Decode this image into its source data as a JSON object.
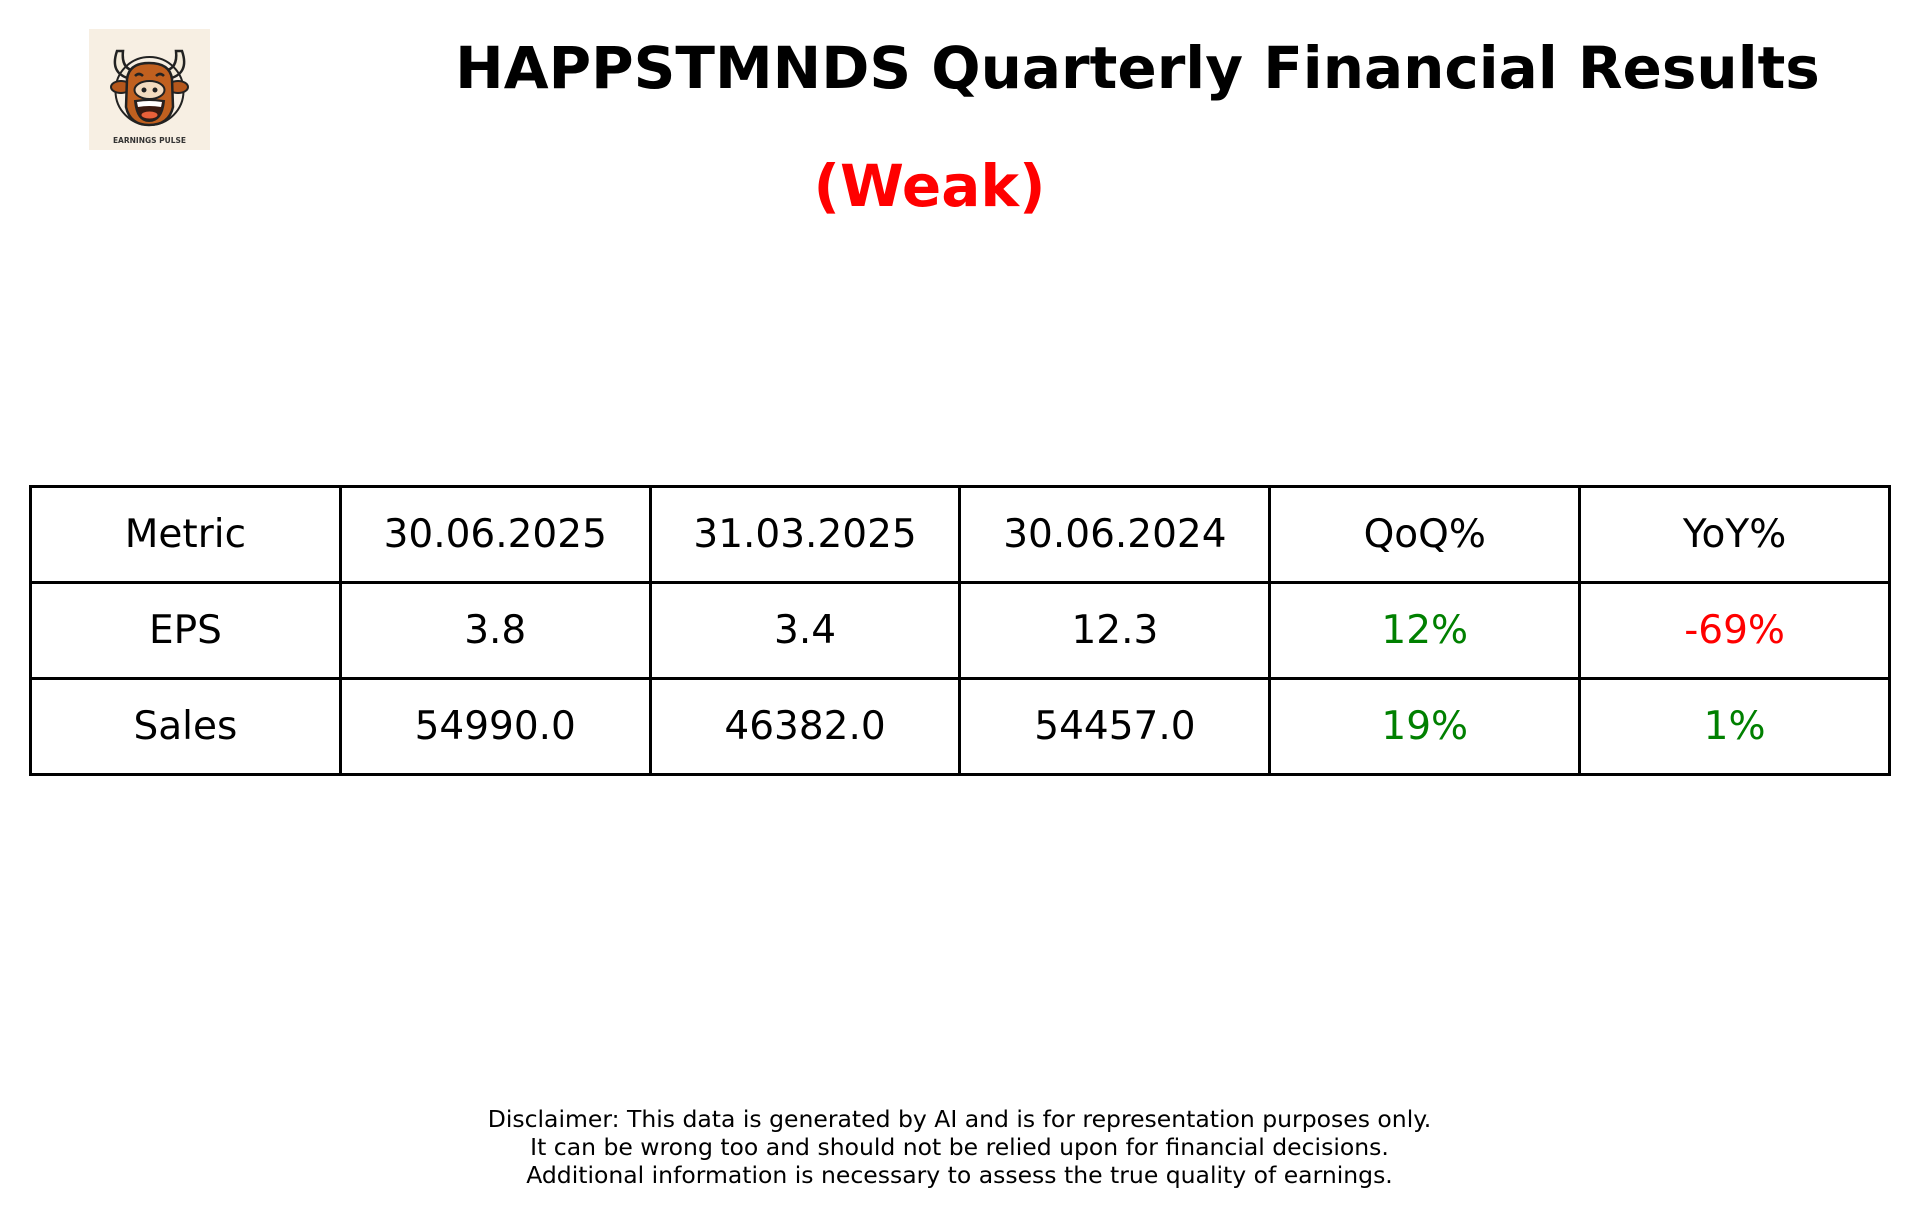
{
  "logo": {
    "text": "EARNINGS PULSE",
    "icon": "bull-face-icon"
  },
  "header": {
    "title": "HAPPSTMNDS Quarterly Financial Results",
    "verdict": "(Weak)",
    "verdict_color": "#ff0000"
  },
  "table": {
    "headers": [
      "Metric",
      "30.06.2025",
      "31.03.2025",
      "30.06.2024",
      "QoQ%",
      "YoY%"
    ],
    "rows": [
      {
        "metric": "EPS",
        "q1": "3.8",
        "q2": "3.4",
        "q3": "12.3",
        "qoq": "12%",
        "yoy": "-69%"
      },
      {
        "metric": "Sales",
        "q1": "54990.0",
        "q2": "46382.0",
        "q3": "54457.0",
        "qoq": "19%",
        "yoy": "1%"
      }
    ],
    "positive_color": "#008000",
    "negative_color": "#ff0000"
  },
  "disclaimer": [
    "Disclaimer: This data is generated by AI and is for representation purposes only.",
    "It can be wrong too and should not be relied upon for financial decisions.",
    "Additional information is necessary to assess the true quality of earnings."
  ]
}
